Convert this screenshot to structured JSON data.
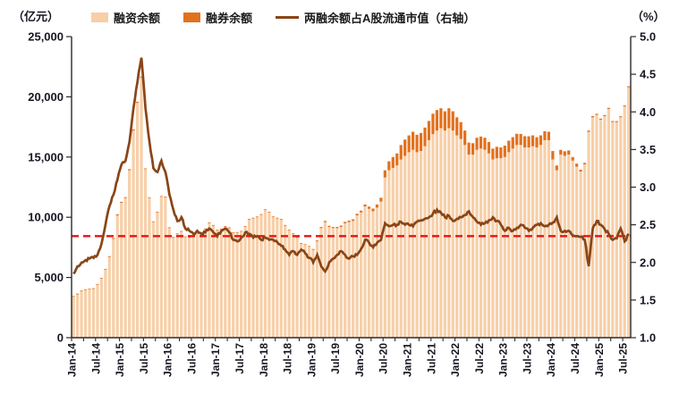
{
  "header": {
    "left_unit": "（亿元）",
    "right_unit": "（%）"
  },
  "legend": [
    {
      "label": "融资余额"
    },
    {
      "label": "融券余额"
    },
    {
      "label": "两融余额占A股流通市值（右轴）"
    }
  ],
  "chart_data": {
    "type": "bar",
    "subtype": "stacked-bar-with-line",
    "title": "",
    "x_start": "Jan-14",
    "x_end": "Aug-25",
    "x_tick_labels": [
      "Jan-14",
      "Jul-14",
      "Jan-15",
      "Jul-15",
      "Jan-16",
      "Jul-16",
      "Jan-17",
      "Jul-17",
      "Jan-18",
      "Jul-18",
      "Jan-19",
      "Jul-19",
      "Jan-20",
      "Jul-20",
      "Jan-21",
      "Jul-21",
      "Jan-22",
      "Jul-22",
      "Jan-23",
      "Jul-23",
      "Jan-24",
      "Jul-24",
      "Jan-25",
      "Jul-25"
    ],
    "months_per_label": 6,
    "minor_tick_months": 3,
    "grid": false,
    "legend_position": "top",
    "y_left": {
      "unit": "亿元",
      "min": 0,
      "max": 25000,
      "tick_step": 5000,
      "tick_labels": [
        "0",
        "5,000",
        "10,000",
        "15,000",
        "20,000",
        "25,000"
      ]
    },
    "y_right": {
      "unit": "%",
      "min": 1.0,
      "max": 5.0,
      "tick_step": 0.5,
      "tick_labels": [
        "1.0",
        "1.5",
        "2.0",
        "2.5",
        "3.0",
        "3.5",
        "4.0",
        "4.5",
        "5.0"
      ]
    },
    "reference_line": {
      "axis": "right",
      "value": 2.35,
      "style": "dashed",
      "color": "#ee1111"
    },
    "colors": {
      "financing_bar": "#F7CFA8",
      "lending_bar": "#E2711D",
      "ratio_line": "#8A4517"
    },
    "series": [
      {
        "name": "融资余额",
        "type": "bar",
        "stack": "margin",
        "axis": "left",
        "color": "#F7CFA8",
        "values": [
          3400,
          3600,
          3850,
          3950,
          4000,
          4050,
          4400,
          4900,
          5650,
          6700,
          8200,
          10150,
          11200,
          11600,
          13900,
          17200,
          19500,
          21600,
          14000,
          11600,
          9600,
          10400,
          11700,
          11650,
          9100,
          8300,
          8600,
          8800,
          8350,
          8300,
          8600,
          8850,
          8700,
          9000,
          9500,
          9300,
          8900,
          9000,
          9200,
          9100,
          8700,
          8700,
          8800,
          9200,
          9800,
          9900,
          10000,
          10200,
          10600,
          10400,
          10000,
          9900,
          9800,
          9300,
          8900,
          8600,
          8300,
          7800,
          7700,
          7550,
          7300,
          8000,
          9100,
          9600,
          9200,
          9100,
          9100,
          9200,
          9500,
          9600,
          9700,
          10150,
          10400,
          10900,
          10700,
          10500,
          10800,
          11300,
          13300,
          13900,
          14100,
          14300,
          14800,
          15100,
          15400,
          15600,
          15400,
          15500,
          15900,
          16400,
          16900,
          17200,
          17400,
          17200,
          17400,
          17200,
          16800,
          16500,
          16000,
          15200,
          15200,
          15600,
          15700,
          15600,
          15300,
          14800,
          14900,
          14900,
          15000,
          15400,
          15700,
          16000,
          16000,
          15800,
          15800,
          15900,
          15800,
          16000,
          16400,
          16400,
          14800,
          13900,
          15200,
          15100,
          15200,
          14700,
          14200,
          13800,
          14400,
          17100,
          18300,
          18500,
          18100,
          18400,
          19000,
          17900,
          17900,
          18300,
          19200,
          20800
        ]
      },
      {
        "name": "融券余额",
        "type": "bar",
        "stack": "margin",
        "axis": "left",
        "color": "#E2711D",
        "values": [
          35,
          35,
          40,
          40,
          40,
          40,
          45,
          50,
          60,
          70,
          80,
          90,
          80,
          70,
          90,
          90,
          90,
          90,
          40,
          30,
          25,
          28,
          30,
          30,
          28,
          28,
          30,
          32,
          30,
          30,
          32,
          35,
          35,
          38,
          40,
          40,
          40,
          42,
          45,
          45,
          42,
          42,
          45,
          48,
          50,
          50,
          52,
          55,
          58,
          60,
          62,
          60,
          58,
          55,
          52,
          50,
          48,
          46,
          50,
          55,
          65,
          75,
          90,
          95,
          90,
          90,
          95,
          110,
          120,
          125,
          130,
          140,
          150,
          160,
          180,
          220,
          260,
          320,
          600,
          750,
          900,
          1000,
          1200,
          1350,
          1400,
          1500,
          1450,
          1500,
          1550,
          1600,
          1700,
          1700,
          1650,
          1600,
          1650,
          1600,
          1500,
          1400,
          1200,
          1000,
          950,
          1000,
          1000,
          1000,
          950,
          900,
          950,
          900,
          950,
          960,
          950,
          930,
          920,
          930,
          920,
          900,
          850,
          800,
          750,
          700,
          700,
          400,
          400,
          380,
          350,
          300,
          250,
          150,
          120,
          100,
          100,
          90,
          90,
          90,
          90,
          88,
          86,
          85,
          84,
          83
        ]
      },
      {
        "name": "两融余额占A股流通市值（右轴）",
        "type": "line",
        "axis": "right",
        "color": "#8A4517",
        "values": [
          1.85,
          1.95,
          2.0,
          2.03,
          2.05,
          2.06,
          2.1,
          2.25,
          2.5,
          2.75,
          2.9,
          3.1,
          3.3,
          3.35,
          3.6,
          4.05,
          4.4,
          4.72,
          4.05,
          3.6,
          3.25,
          3.2,
          3.35,
          3.2,
          2.9,
          2.7,
          2.55,
          2.6,
          2.45,
          2.42,
          2.38,
          2.42,
          2.38,
          2.4,
          2.45,
          2.4,
          2.35,
          2.42,
          2.45,
          2.4,
          2.3,
          2.28,
          2.33,
          2.4,
          2.38,
          2.33,
          2.35,
          2.3,
          2.33,
          2.3,
          2.3,
          2.27,
          2.22,
          2.17,
          2.1,
          2.15,
          2.1,
          2.17,
          2.12,
          2.06,
          2.0,
          2.1,
          1.95,
          1.88,
          2.0,
          2.05,
          2.1,
          2.15,
          2.1,
          2.05,
          2.08,
          2.1,
          2.18,
          2.3,
          2.26,
          2.2,
          2.26,
          2.3,
          2.52,
          2.48,
          2.5,
          2.5,
          2.54,
          2.5,
          2.5,
          2.48,
          2.54,
          2.56,
          2.58,
          2.6,
          2.65,
          2.7,
          2.66,
          2.6,
          2.62,
          2.55,
          2.58,
          2.6,
          2.63,
          2.68,
          2.6,
          2.54,
          2.5,
          2.52,
          2.56,
          2.6,
          2.55,
          2.5,
          2.42,
          2.46,
          2.42,
          2.46,
          2.5,
          2.46,
          2.42,
          2.46,
          2.5,
          2.52,
          2.48,
          2.5,
          2.53,
          2.6,
          2.42,
          2.42,
          2.42,
          2.36,
          2.35,
          2.34,
          2.3,
          1.95,
          2.45,
          2.55,
          2.5,
          2.44,
          2.38,
          2.3,
          2.32,
          2.45,
          2.28,
          2.38
        ]
      }
    ]
  }
}
